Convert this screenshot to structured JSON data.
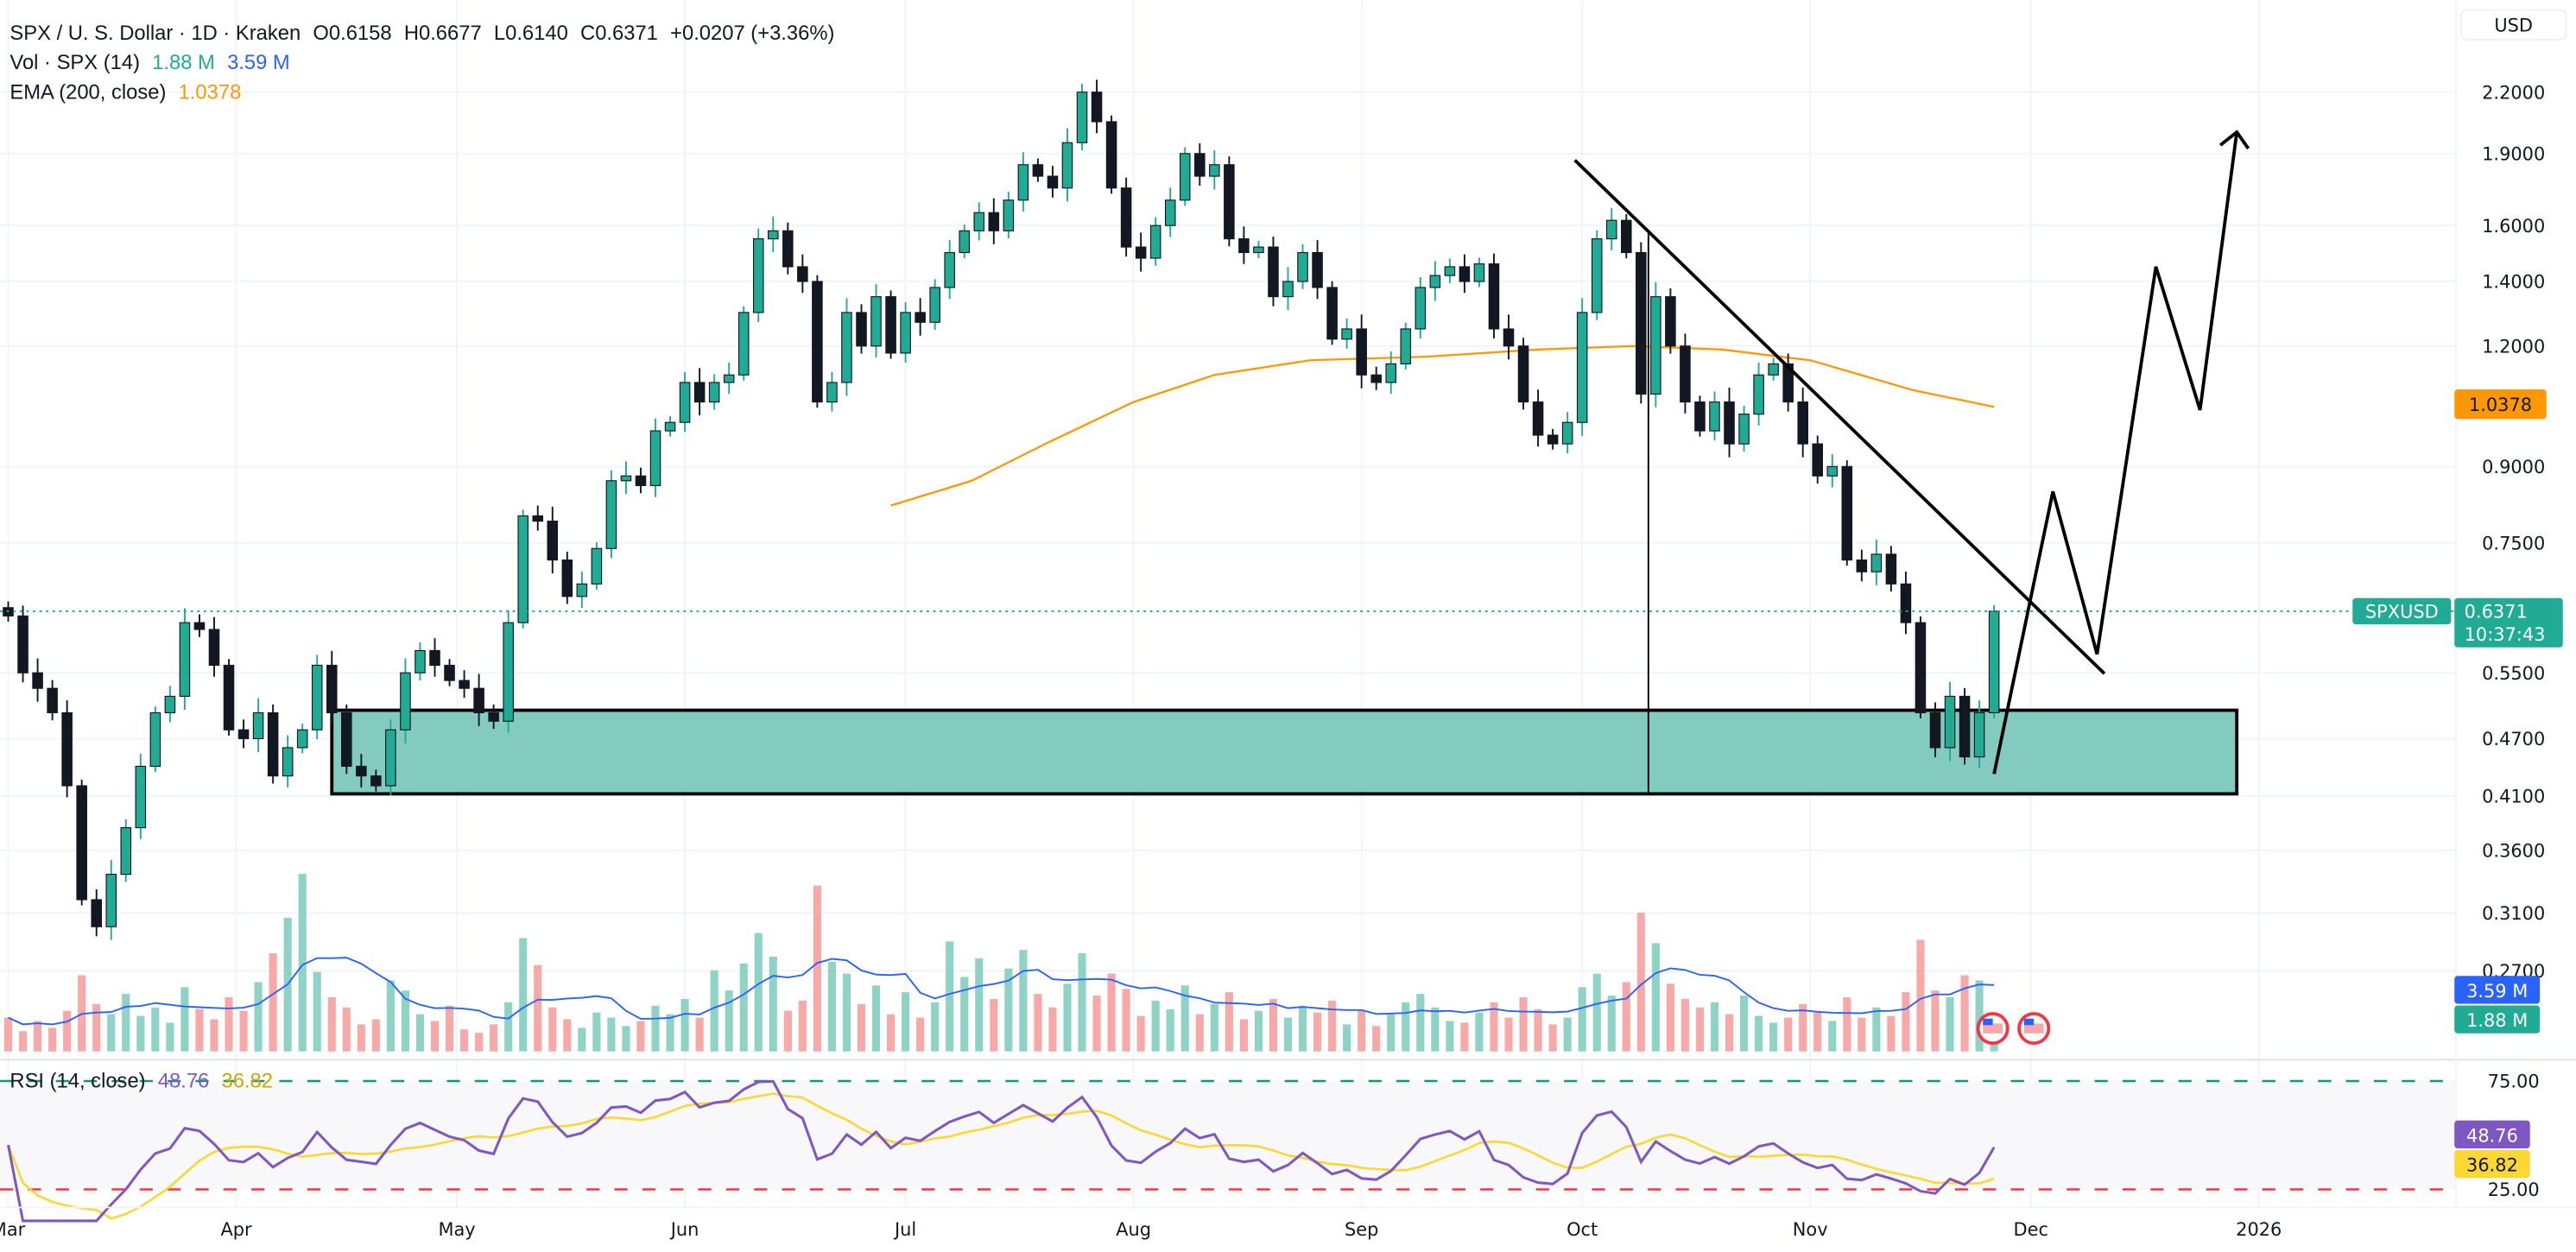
{
  "header": {
    "symbol": "SPX / U. S. Dollar · 1D · Kraken",
    "open": "O0.6158",
    "high": "H0.6677",
    "low": "L0.6140",
    "close": "C0.6371",
    "change": "+0.0207 (+3.36%)",
    "vol_label": "Vol · SPX (14)",
    "vol_value": "1.88 M",
    "vol_ma_value": "3.59 M",
    "ema_label": "EMA (200, close)",
    "ema_value": "1.0378",
    "rsi_label": "RSI (14, close)",
    "rsi_value": "48.76",
    "rsi_ma_value": "36.82"
  },
  "currency_button": "USD",
  "badges": {
    "ema": "1.0378",
    "symbol": "SPXUSD",
    "price": "0.6371",
    "countdown": "10:37:43",
    "vol_ma": "3.59 M",
    "vol": "1.88 M",
    "rsi": "48.76",
    "rsi_ma": "36.82"
  },
  "colors": {
    "up": "#22ab94",
    "down": "#131722",
    "vol_up": "#8fd3c7",
    "vol_down": "#f7a9a7",
    "ema": "#ff9800",
    "vol_ma": "#2962ff",
    "rsi": "#7e57c2",
    "rsi_ma": "#fdd835",
    "rsi_upper": "#089981",
    "rsi_lower": "#f23645",
    "zone": "#84cbbf"
  },
  "chart_data": {
    "type": "candlestick",
    "scale": "log",
    "price_ticks": [
      "2.2000",
      "1.9000",
      "1.6000",
      "1.4000",
      "1.2000",
      "0.9000",
      "0.7500",
      "0.5500",
      "0.4700",
      "0.4100",
      "0.3600",
      "0.3100",
      "0.2700"
    ],
    "time_ticks": [
      {
        "d": "Mar 1",
        "label": "Mar"
      },
      {
        "d": "Apr 1",
        "label": "Apr"
      },
      {
        "d": "May 1",
        "label": "May"
      },
      {
        "d": "Jun 1",
        "label": "Jun"
      },
      {
        "d": "Jul 1",
        "label": "Jul"
      },
      {
        "d": "Aug 1",
        "label": "Aug"
      },
      {
        "d": "Sep 1",
        "label": "Sep"
      },
      {
        "d": "Oct 1",
        "label": "Oct"
      },
      {
        "d": "Nov 1",
        "label": "Nov"
      },
      {
        "d": "Dec 1",
        "label": "Dec"
      },
      {
        "d": "Jan 1 2026",
        "label": "2026"
      }
    ],
    "rsi_levels": [
      "75.00",
      "25.00"
    ],
    "candles": [
      {
        "d": "Mar 1",
        "c": 0.63,
        "v": 2.0
      },
      {
        "d": "Mar 3",
        "c": 0.55,
        "v": 1.2
      },
      {
        "d": "Mar 5",
        "c": 0.53,
        "v": 1.8
      },
      {
        "d": "Mar 7",
        "c": 0.5,
        "v": 1.4
      },
      {
        "d": "Mar 9",
        "c": 0.42,
        "v": 2.4
      },
      {
        "d": "Mar 11",
        "c": 0.32,
        "v": 4.5
      },
      {
        "d": "Mar 13",
        "c": 0.3,
        "v": 2.8
      },
      {
        "d": "Mar 15",
        "c": 0.34,
        "v": 2.2
      },
      {
        "d": "Mar 17",
        "c": 0.38,
        "v": 3.4
      },
      {
        "d": "Mar 19",
        "c": 0.44,
        "v": 2.1
      },
      {
        "d": "Mar 21",
        "c": 0.5,
        "v": 2.6
      },
      {
        "d": "Mar 23",
        "c": 0.52,
        "v": 1.7
      },
      {
        "d": "Mar 25",
        "c": 0.62,
        "v": 3.8
      },
      {
        "d": "Mar 27",
        "c": 0.61,
        "v": 2.5
      },
      {
        "d": "Mar 29",
        "c": 0.56,
        "v": 1.9
      },
      {
        "d": "Mar 31",
        "c": 0.48,
        "v": 3.2
      },
      {
        "d": "Apr 2",
        "c": 0.47,
        "v": 2.4
      },
      {
        "d": "Apr 4",
        "c": 0.5,
        "v": 4.1
      },
      {
        "d": "Apr 6",
        "c": 0.43,
        "v": 5.8
      },
      {
        "d": "Apr 8",
        "c": 0.46,
        "v": 7.9
      },
      {
        "d": "Apr 10",
        "c": 0.48,
        "v": 10.5
      },
      {
        "d": "Apr 12",
        "c": 0.56,
        "v": 4.7
      },
      {
        "d": "Apr 14",
        "c": 0.5,
        "v": 3.2
      },
      {
        "d": "Apr 16",
        "c": 0.44,
        "v": 2.6
      },
      {
        "d": "Apr 18",
        "c": 0.43,
        "v": 1.6
      },
      {
        "d": "Apr 20",
        "c": 0.42,
        "v": 1.9
      },
      {
        "d": "Apr 22",
        "c": 0.48,
        "v": 4.2
      },
      {
        "d": "Apr 24",
        "c": 0.55,
        "v": 3.6
      },
      {
        "d": "Apr 26",
        "c": 0.58,
        "v": 2.2
      },
      {
        "d": "Apr 28",
        "c": 0.56,
        "v": 1.8
      },
      {
        "d": "Apr 30",
        "c": 0.54,
        "v": 2.7
      },
      {
        "d": "May 2",
        "c": 0.53,
        "v": 1.3
      },
      {
        "d": "May 4",
        "c": 0.5,
        "v": 1.1
      },
      {
        "d": "May 6",
        "c": 0.49,
        "v": 1.6
      },
      {
        "d": "May 8",
        "c": 0.62,
        "v": 2.9
      },
      {
        "d": "May 10",
        "c": 0.8,
        "v": 6.7
      },
      {
        "d": "May 12",
        "c": 0.79,
        "v": 5.1
      },
      {
        "d": "May 14",
        "c": 0.72,
        "v": 2.6
      },
      {
        "d": "May 16",
        "c": 0.66,
        "v": 1.9
      },
      {
        "d": "May 18",
        "c": 0.68,
        "v": 1.4
      },
      {
        "d": "May 20",
        "c": 0.74,
        "v": 2.3
      },
      {
        "d": "May 22",
        "c": 0.87,
        "v": 2.0
      },
      {
        "d": "May 24",
        "c": 0.88,
        "v": 1.5
      },
      {
        "d": "May 26",
        "c": 0.86,
        "v": 1.8
      },
      {
        "d": "May 28",
        "c": 0.98,
        "v": 2.7
      },
      {
        "d": "May 30",
        "c": 1.0,
        "v": 2.2
      },
      {
        "d": "Jun 1",
        "c": 1.1,
        "v": 3.1
      },
      {
        "d": "Jun 3",
        "c": 1.05,
        "v": 2.0
      },
      {
        "d": "Jun 5",
        "c": 1.1,
        "v": 4.8
      },
      {
        "d": "Jun 7",
        "c": 1.12,
        "v": 3.6
      },
      {
        "d": "Jun 9",
        "c": 1.3,
        "v": 5.2
      },
      {
        "d": "Jun 11",
        "c": 1.55,
        "v": 7.0
      },
      {
        "d": "Jun 13",
        "c": 1.58,
        "v": 5.6
      },
      {
        "d": "Jun 15",
        "c": 1.45,
        "v": 2.4
      },
      {
        "d": "Jun 17",
        "c": 1.4,
        "v": 3.0
      },
      {
        "d": "Jun 19",
        "c": 1.05,
        "v": 9.8
      },
      {
        "d": "Jun 21",
        "c": 1.1,
        "v": 5.3
      },
      {
        "d": "Jun 23",
        "c": 1.3,
        "v": 4.6
      },
      {
        "d": "Jun 25",
        "c": 1.2,
        "v": 2.8
      },
      {
        "d": "Jun 27",
        "c": 1.35,
        "v": 3.9
      },
      {
        "d": "Jun 29",
        "c": 1.18,
        "v": 2.2
      },
      {
        "d": "Jul 1",
        "c": 1.3,
        "v": 3.5
      },
      {
        "d": "Jul 3",
        "c": 1.27,
        "v": 2.0
      },
      {
        "d": "Jul 5",
        "c": 1.38,
        "v": 2.9
      },
      {
        "d": "Jul 7",
        "c": 1.5,
        "v": 6.5
      },
      {
        "d": "Jul 9",
        "c": 1.58,
        "v": 4.4
      },
      {
        "d": "Jul 11",
        "c": 1.65,
        "v": 5.5
      },
      {
        "d": "Jul 13",
        "c": 1.58,
        "v": 3.1
      },
      {
        "d": "Jul 15",
        "c": 1.7,
        "v": 4.9
      },
      {
        "d": "Jul 17",
        "c": 1.85,
        "v": 6.0
      },
      {
        "d": "Jul 19",
        "c": 1.8,
        "v": 3.4
      },
      {
        "d": "Jul 21",
        "c": 1.75,
        "v": 2.6
      },
      {
        "d": "Jul 23",
        "c": 1.95,
        "v": 4.0
      },
      {
        "d": "Jul 25",
        "c": 2.2,
        "v": 5.8
      },
      {
        "d": "Jul 27",
        "c": 2.05,
        "v": 3.3
      },
      {
        "d": "Jul 29",
        "c": 1.75,
        "v": 4.6
      },
      {
        "d": "Jul 31",
        "c": 1.52,
        "v": 3.7
      },
      {
        "d": "Aug 2",
        "c": 1.48,
        "v": 2.1
      },
      {
        "d": "Aug 4",
        "c": 1.6,
        "v": 3.0
      },
      {
        "d": "Aug 6",
        "c": 1.7,
        "v": 2.5
      },
      {
        "d": "Aug 8",
        "c": 1.9,
        "v": 3.9
      },
      {
        "d": "Aug 10",
        "c": 1.8,
        "v": 2.2
      },
      {
        "d": "Aug 12",
        "c": 1.85,
        "v": 2.8
      },
      {
        "d": "Aug 14",
        "c": 1.55,
        "v": 3.5
      },
      {
        "d": "Aug 16",
        "c": 1.5,
        "v": 1.9
      },
      {
        "d": "Aug 18",
        "c": 1.52,
        "v": 2.4
      },
      {
        "d": "Aug 20",
        "c": 1.35,
        "v": 3.1
      },
      {
        "d": "Aug 22",
        "c": 1.4,
        "v": 2.0
      },
      {
        "d": "Aug 24",
        "c": 1.5,
        "v": 2.7
      },
      {
        "d": "Aug 26",
        "c": 1.38,
        "v": 2.3
      },
      {
        "d": "Aug 28",
        "c": 1.22,
        "v": 3.0
      },
      {
        "d": "Aug 30",
        "c": 1.25,
        "v": 1.6
      },
      {
        "d": "Sep 1",
        "c": 1.12,
        "v": 2.4
      },
      {
        "d": "Sep 3",
        "c": 1.1,
        "v": 1.5
      },
      {
        "d": "Sep 5",
        "c": 1.15,
        "v": 2.2
      },
      {
        "d": "Sep 7",
        "c": 1.25,
        "v": 2.9
      },
      {
        "d": "Sep 9",
        "c": 1.38,
        "v": 3.4
      },
      {
        "d": "Sep 11",
        "c": 1.42,
        "v": 2.6
      },
      {
        "d": "Sep 13",
        "c": 1.45,
        "v": 1.8
      },
      {
        "d": "Sep 15",
        "c": 1.4,
        "v": 1.7
      },
      {
        "d": "Sep 17",
        "c": 1.46,
        "v": 2.3
      },
      {
        "d": "Sep 19",
        "c": 1.25,
        "v": 2.9
      },
      {
        "d": "Sep 21",
        "c": 1.2,
        "v": 2.0
      },
      {
        "d": "Sep 23",
        "c": 1.05,
        "v": 3.2
      },
      {
        "d": "Sep 25",
        "c": 0.97,
        "v": 2.5
      },
      {
        "d": "Sep 27",
        "c": 0.95,
        "v": 1.6
      },
      {
        "d": "Sep 29",
        "c": 1.0,
        "v": 2.0
      },
      {
        "d": "Oct 1",
        "c": 1.3,
        "v": 3.8
      },
      {
        "d": "Oct 3",
        "c": 1.55,
        "v": 4.6
      },
      {
        "d": "Oct 5",
        "c": 1.62,
        "v": 3.3
      },
      {
        "d": "Oct 7",
        "c": 1.5,
        "v": 4.1
      },
      {
        "d": "Oct 9",
        "c": 1.07,
        "v": 8.2
      },
      {
        "d": "Oct 11",
        "c": 1.35,
        "v": 6.4
      },
      {
        "d": "Oct 13",
        "c": 1.2,
        "v": 4.0
      },
      {
        "d": "Oct 15",
        "c": 1.05,
        "v": 3.1
      },
      {
        "d": "Oct 17",
        "c": 0.98,
        "v": 2.6
      },
      {
        "d": "Oct 19",
        "c": 1.05,
        "v": 2.9
      },
      {
        "d": "Oct 21",
        "c": 0.95,
        "v": 2.2
      },
      {
        "d": "Oct 23",
        "c": 1.02,
        "v": 3.3
      },
      {
        "d": "Oct 25",
        "c": 1.12,
        "v": 2.1
      },
      {
        "d": "Oct 27",
        "c": 1.15,
        "v": 1.7
      },
      {
        "d": "Oct 29",
        "c": 1.05,
        "v": 2.0
      },
      {
        "d": "Oct 31",
        "c": 0.95,
        "v": 2.8
      },
      {
        "d": "Nov 2",
        "c": 0.88,
        "v": 2.3
      },
      {
        "d": "Nov 4",
        "c": 0.9,
        "v": 1.8
      },
      {
        "d": "Nov 6",
        "c": 0.72,
        "v": 3.2
      },
      {
        "d": "Nov 8",
        "c": 0.7,
        "v": 2.0
      },
      {
        "d": "Nov 10",
        "c": 0.73,
        "v": 2.6
      },
      {
        "d": "Nov 12",
        "c": 0.68,
        "v": 2.1
      },
      {
        "d": "Nov 14",
        "c": 0.62,
        "v": 3.5
      },
      {
        "d": "Nov 16",
        "c": 0.5,
        "v": 6.6
      },
      {
        "d": "Nov 18",
        "c": 0.46,
        "v": 3.6
      },
      {
        "d": "Nov 20",
        "c": 0.52,
        "v": 3.2
      },
      {
        "d": "Nov 22",
        "c": 0.45,
        "v": 4.5
      },
      {
        "d": "Nov 24",
        "c": 0.5,
        "v": 4.2
      },
      {
        "d": "Nov 26",
        "c": 0.6371,
        "v": 1.88
      }
    ],
    "ema_200": [
      {
        "d": "Jun 29",
        "v": 0.82
      },
      {
        "d": "Jul 10",
        "v": 0.87
      },
      {
        "d": "Jul 20",
        "v": 0.95
      },
      {
        "d": "Aug 1",
        "v": 1.05
      },
      {
        "d": "Aug 12",
        "v": 1.12
      },
      {
        "d": "Aug 25",
        "v": 1.16
      },
      {
        "d": "Sep 10",
        "v": 1.17
      },
      {
        "d": "Sep 25",
        "v": 1.19
      },
      {
        "d": "Oct 8",
        "v": 1.2
      },
      {
        "d": "Oct 20",
        "v": 1.19
      },
      {
        "d": "Nov 1",
        "v": 1.16
      },
      {
        "d": "Nov 15",
        "v": 1.08
      },
      {
        "d": "Nov 26",
        "v": 1.0378
      }
    ],
    "drawings": {
      "zone": {
        "from": "Apr 14",
        "to": "Dec 29",
        "top": 0.503,
        "bottom": 0.412
      },
      "vertical_line": {
        "d": "Oct 10",
        "top": 1.58,
        "bottom": 0.412
      },
      "trendline": [
        {
          "d": "Sep 30",
          "p": 1.87
        },
        {
          "d": "Dec 11",
          "p": 0.549
        }
      ],
      "projection": [
        {
          "d": "Nov 26",
          "p": 0.432
        },
        {
          "d": "Dec 4",
          "p": 0.848
        },
        {
          "d": "Dec 10",
          "p": 0.575
        },
        {
          "d": "Dec 18",
          "p": 1.45
        },
        {
          "d": "Dec 24",
          "p": 1.03
        },
        {
          "d": "Dec 29",
          "p": 2.0
        }
      ]
    }
  }
}
